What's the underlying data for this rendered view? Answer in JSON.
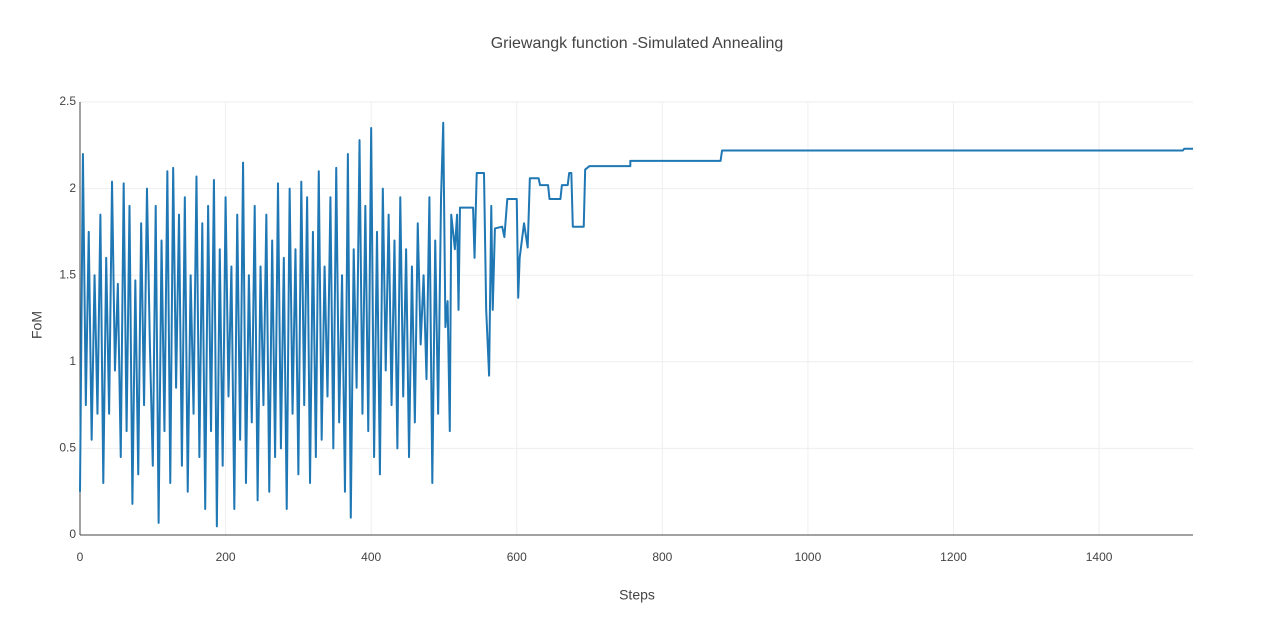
{
  "chart_data": {
    "type": "line",
    "title": "Griewangk function -Simulated  Annealing",
    "x_label": "Steps",
    "y_label": "FoM",
    "xlim": [
      0,
      1529
    ],
    "ylim": [
      0,
      2.5
    ],
    "xticks": [
      0,
      200,
      400,
      600,
      800,
      1000,
      1200,
      1400
    ],
    "yticks": [
      0,
      0.5,
      1,
      1.5,
      2,
      2.5
    ],
    "grid": true,
    "series": [
      {
        "color": "#1f77b4",
        "x": [
          0,
          4,
          8,
          12,
          16,
          20,
          24,
          28,
          32,
          36,
          40,
          44,
          48,
          52,
          56,
          60,
          64,
          68,
          72,
          76,
          80,
          84,
          88,
          92,
          96,
          100,
          104,
          108,
          112,
          116,
          120,
          124,
          128,
          132,
          136,
          140,
          144,
          148,
          152,
          156,
          160,
          164,
          168,
          172,
          176,
          180,
          184,
          188,
          192,
          196,
          200,
          204,
          208,
          212,
          216,
          220,
          224,
          228,
          232,
          236,
          240,
          244,
          248,
          252,
          256,
          260,
          264,
          268,
          272,
          276,
          280,
          284,
          288,
          292,
          296,
          300,
          304,
          308,
          312,
          316,
          320,
          324,
          328,
          332,
          336,
          340,
          344,
          348,
          352,
          356,
          360,
          364,
          368,
          372,
          376,
          380,
          384,
          388,
          392,
          396,
          400,
          404,
          408,
          412,
          416,
          420,
          424,
          428,
          432,
          436,
          440,
          444,
          448,
          452,
          456,
          460,
          464,
          468,
          472,
          476,
          480,
          484,
          488,
          492,
          496,
          499,
          502,
          505,
          508,
          510,
          515,
          518,
          520,
          522,
          540,
          542,
          545,
          555,
          558,
          562,
          565,
          567,
          570,
          580,
          583,
          587,
          600,
          602,
          604,
          610,
          615,
          618,
          630,
          632,
          643,
          645,
          660,
          662,
          670,
          672,
          675,
          677,
          692,
          694,
          697,
          700,
          756,
          756,
          880,
          882,
          1515,
          1517,
          1529
        ],
        "values": [
          0.25,
          2.2,
          0.75,
          1.75,
          0.55,
          1.5,
          0.7,
          1.85,
          0.3,
          1.6,
          0.7,
          2.04,
          0.95,
          1.45,
          0.45,
          2.03,
          0.6,
          1.9,
          0.18,
          1.47,
          0.35,
          1.8,
          0.75,
          2.0,
          1.1,
          0.4,
          1.9,
          0.07,
          1.7,
          0.6,
          2.1,
          0.3,
          2.12,
          0.85,
          1.85,
          0.4,
          1.95,
          0.25,
          1.5,
          0.7,
          2.07,
          0.45,
          1.8,
          0.15,
          1.9,
          0.6,
          2.05,
          0.05,
          1.65,
          0.4,
          1.95,
          0.8,
          1.55,
          0.15,
          1.85,
          0.55,
          2.15,
          0.3,
          1.5,
          0.65,
          1.9,
          0.2,
          1.55,
          0.75,
          1.85,
          0.25,
          1.7,
          0.45,
          2.03,
          0.5,
          1.6,
          0.15,
          2.0,
          0.7,
          1.65,
          0.35,
          2.04,
          0.75,
          1.95,
          0.3,
          1.75,
          0.45,
          2.1,
          0.55,
          1.55,
          0.8,
          1.95,
          0.5,
          2.12,
          0.65,
          1.5,
          0.25,
          2.2,
          0.1,
          1.65,
          0.85,
          2.28,
          0.7,
          1.9,
          0.6,
          2.35,
          0.45,
          1.75,
          0.35,
          2.0,
          0.95,
          1.85,
          0.75,
          1.7,
          0.5,
          1.95,
          0.8,
          1.65,
          0.45,
          1.55,
          0.65,
          1.8,
          1.1,
          1.5,
          0.9,
          1.95,
          0.3,
          1.7,
          0.7,
          1.95,
          2.38,
          1.2,
          1.35,
          0.6,
          1.85,
          1.65,
          1.85,
          1.3,
          1.89,
          1.89,
          1.6,
          2.09,
          2.09,
          1.3,
          0.92,
          1.9,
          1.3,
          1.77,
          1.78,
          1.72,
          1.94,
          1.94,
          1.37,
          1.6,
          1.8,
          1.66,
          2.06,
          2.06,
          2.02,
          2.02,
          1.94,
          1.94,
          2.02,
          2.02,
          2.09,
          2.09,
          1.78,
          1.78,
          2.11,
          2.12,
          2.13,
          2.13,
          2.16,
          2.16,
          2.22,
          2.22,
          2.23,
          2.23
        ]
      }
    ]
  }
}
